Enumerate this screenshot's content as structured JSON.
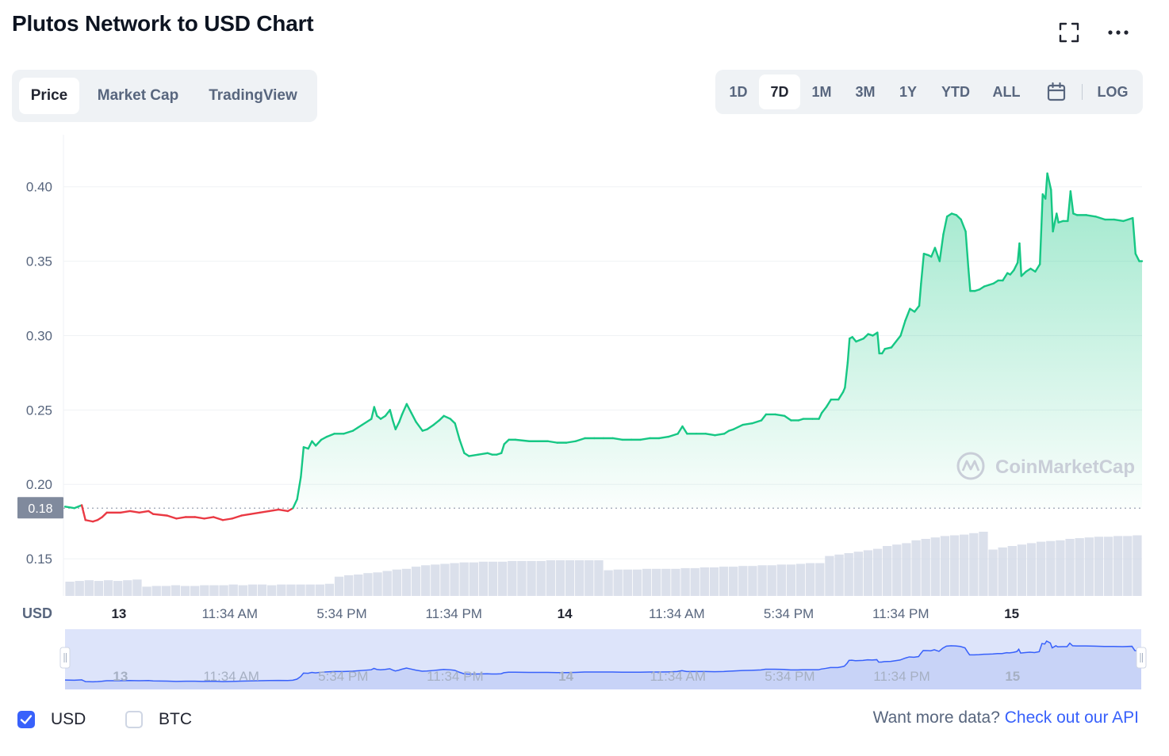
{
  "title": "Plutos Network to USD Chart",
  "icons": {
    "fullscreen": "fullscreen-icon",
    "more": "more-options-icon",
    "calendar": "calendar-icon",
    "check": "check-icon",
    "brand": "coinmarketcap-logo-icon"
  },
  "tabs": [
    {
      "label": "Price",
      "active": true
    },
    {
      "label": "Market Cap",
      "active": false
    },
    {
      "label": "TradingView",
      "active": false
    }
  ],
  "ranges": [
    {
      "label": "1D",
      "active": false
    },
    {
      "label": "7D",
      "active": true
    },
    {
      "label": "1M",
      "active": false
    },
    {
      "label": "3M",
      "active": false
    },
    {
      "label": "1Y",
      "active": false
    },
    {
      "label": "YTD",
      "active": false
    },
    {
      "label": "ALL",
      "active": false
    }
  ],
  "log_label": "LOG",
  "currencies": [
    {
      "label": "USD",
      "checked": true
    },
    {
      "label": "BTC",
      "checked": false
    }
  ],
  "api": {
    "prompt": "Want more data?",
    "link": "Check out our API"
  },
  "colors": {
    "up": "#16c784",
    "down": "#ea3943",
    "accent": "#3861fb",
    "grid": "#eff2f5",
    "axis_text": "#58667e",
    "volume": "#cfd6e4"
  },
  "chart_data": {
    "type": "area",
    "title": "",
    "currency_label": "USD",
    "watermark": "CoinMarketCap",
    "ylim": [
      0.125,
      0.435
    ],
    "yticks": [
      0.15,
      0.2,
      0.25,
      0.3,
      0.35,
      0.4
    ],
    "ytick_labels": [
      "0.15",
      "0.20",
      "0.25",
      "0.30",
      "0.35",
      "0.40"
    ],
    "baseline_value": 0.184,
    "baseline_label": "0.18",
    "xticks": [
      {
        "pos": 0.05,
        "label": "13",
        "bold": true
      },
      {
        "pos": 0.153,
        "label": "11:34 AM",
        "bold": false
      },
      {
        "pos": 0.257,
        "label": "5:34 PM",
        "bold": false
      },
      {
        "pos": 0.361,
        "label": "11:34 PM",
        "bold": false
      },
      {
        "pos": 0.464,
        "label": "14",
        "bold": true
      },
      {
        "pos": 0.568,
        "label": "11:34 AM",
        "bold": false
      },
      {
        "pos": 0.672,
        "label": "5:34 PM",
        "bold": false
      },
      {
        "pos": 0.776,
        "label": "11:34 PM",
        "bold": false
      },
      {
        "pos": 0.879,
        "label": "15",
        "bold": true
      }
    ],
    "series": [
      {
        "points": [
          [
            0.0,
            0.185
          ],
          [
            0.01,
            0.184
          ],
          [
            0.018,
            0.186
          ],
          [
            0.02,
            0.181
          ],
          [
            0.022,
            0.176
          ],
          [
            0.03,
            0.175
          ],
          [
            0.035,
            0.176
          ],
          [
            0.04,
            0.178
          ],
          [
            0.045,
            0.181
          ],
          [
            0.06,
            0.181
          ],
          [
            0.07,
            0.182
          ],
          [
            0.08,
            0.181
          ],
          [
            0.09,
            0.182
          ],
          [
            0.095,
            0.18
          ],
          [
            0.11,
            0.179
          ],
          [
            0.12,
            0.177
          ],
          [
            0.13,
            0.178
          ],
          [
            0.14,
            0.178
          ],
          [
            0.15,
            0.177
          ],
          [
            0.16,
            0.178
          ],
          [
            0.17,
            0.176
          ],
          [
            0.18,
            0.177
          ],
          [
            0.19,
            0.179
          ],
          [
            0.2,
            0.18
          ],
          [
            0.21,
            0.181
          ],
          [
            0.22,
            0.182
          ],
          [
            0.23,
            0.183
          ],
          [
            0.24,
            0.182
          ],
          [
            0.2455,
            0.184
          ],
          [
            0.25,
            0.19
          ],
          [
            0.254,
            0.205
          ],
          [
            0.257,
            0.225
          ],
          [
            0.262,
            0.224
          ],
          [
            0.266,
            0.229
          ],
          [
            0.27,
            0.226
          ],
          [
            0.276,
            0.23
          ],
          [
            0.282,
            0.232
          ],
          [
            0.29,
            0.234
          ],
          [
            0.3,
            0.234
          ],
          [
            0.31,
            0.236
          ],
          [
            0.315,
            0.238
          ],
          [
            0.32,
            0.24
          ],
          [
            0.33,
            0.244
          ],
          [
            0.333,
            0.252
          ],
          [
            0.336,
            0.246
          ],
          [
            0.34,
            0.244
          ],
          [
            0.345,
            0.246
          ],
          [
            0.35,
            0.25
          ],
          [
            0.353,
            0.243
          ],
          [
            0.356,
            0.237
          ],
          [
            0.36,
            0.242
          ],
          [
            0.363,
            0.247
          ],
          [
            0.368,
            0.254
          ],
          [
            0.373,
            0.248
          ],
          [
            0.378,
            0.242
          ],
          [
            0.385,
            0.236
          ],
          [
            0.39,
            0.237
          ],
          [
            0.397,
            0.24
          ],
          [
            0.403,
            0.243
          ],
          [
            0.408,
            0.246
          ],
          [
            0.415,
            0.244
          ],
          [
            0.42,
            0.241
          ],
          [
            0.425,
            0.23
          ],
          [
            0.43,
            0.221
          ],
          [
            0.435,
            0.219
          ],
          [
            0.445,
            0.22
          ],
          [
            0.455,
            0.221
          ],
          [
            0.46,
            0.22
          ],
          [
            0.465,
            0.22
          ],
          [
            0.47,
            0.221
          ],
          [
            0.473,
            0.227
          ],
          [
            0.478,
            0.23
          ],
          [
            0.485,
            0.23
          ],
          [
            0.5,
            0.229
          ],
          [
            0.51,
            0.229
          ],
          [
            0.52,
            0.229
          ],
          [
            0.53,
            0.228
          ],
          [
            0.54,
            0.228
          ],
          [
            0.55,
            0.229
          ],
          [
            0.56,
            0.231
          ],
          [
            0.57,
            0.231
          ],
          [
            0.58,
            0.231
          ],
          [
            0.59,
            0.231
          ],
          [
            0.6,
            0.23
          ],
          [
            0.61,
            0.23
          ],
          [
            0.62,
            0.23
          ],
          [
            0.63,
            0.231
          ],
          [
            0.64,
            0.231
          ],
          [
            0.65,
            0.232
          ],
          [
            0.66,
            0.234
          ],
          [
            0.665,
            0.239
          ],
          [
            0.67,
            0.234
          ],
          [
            0.68,
            0.234
          ],
          [
            0.69,
            0.234
          ],
          [
            0.7,
            0.233
          ],
          [
            0.71,
            0.234
          ],
          [
            0.715,
            0.236
          ],
          [
            0.72,
            0.237
          ],
          [
            0.73,
            0.24
          ],
          [
            0.74,
            0.241
          ],
          [
            0.75,
            0.243
          ],
          [
            0.755,
            0.247
          ],
          [
            0.765,
            0.247
          ],
          [
            0.775,
            0.246
          ],
          [
            0.782,
            0.243
          ],
          [
            0.79,
            0.243
          ],
          [
            0.795,
            0.244
          ],
          [
            0.805,
            0.244
          ],
          [
            0.812,
            0.244
          ],
          [
            0.815,
            0.248
          ],
          [
            0.82,
            0.252
          ],
          [
            0.825,
            0.257
          ],
          [
            0.833,
            0.257
          ],
          [
            0.838,
            0.262
          ],
          [
            0.84,
            0.265
          ],
          [
            0.843,
            0.282
          ],
          [
            0.845,
            0.298
          ],
          [
            0.848,
            0.299
          ],
          [
            0.852,
            0.296
          ],
          [
            0.86,
            0.298
          ],
          [
            0.865,
            0.301
          ],
          [
            0.87,
            0.3
          ],
          [
            0.875,
            0.302
          ],
          [
            0.877,
            0.288
          ],
          [
            0.88,
            0.288
          ],
          [
            0.883,
            0.291
          ],
          [
            0.89,
            0.292
          ],
          [
            0.9,
            0.3
          ],
          [
            0.905,
            0.31
          ],
          [
            0.91,
            0.318
          ],
          [
            0.915,
            0.316
          ],
          [
            0.92,
            0.32
          ],
          [
            0.922,
            0.335
          ],
          [
            0.925,
            0.355
          ],
          [
            0.93,
            0.354
          ],
          [
            0.933,
            0.353
          ],
          [
            0.937,
            0.359
          ],
          [
            0.942,
            0.35
          ],
          [
            0.946,
            0.368
          ],
          [
            0.95,
            0.38
          ],
          [
            0.955,
            0.382
          ],
          [
            0.96,
            0.381
          ],
          [
            0.965,
            0.378
          ],
          [
            0.97,
            0.37
          ],
          [
            0.973,
            0.345
          ],
          [
            0.975,
            0.33
          ],
          [
            0.98,
            0.33
          ],
          [
            0.985,
            0.331
          ],
          [
            0.99,
            0.333
          ],
          [
            0.995,
            0.334
          ],
          [
            1.0,
            0.335
          ],
          [
            1.005,
            0.337
          ],
          [
            1.01,
            0.337
          ],
          [
            1.015,
            0.342
          ],
          [
            1.018,
            0.341
          ],
          [
            1.022,
            0.344
          ],
          [
            1.026,
            0.349
          ],
          [
            1.028,
            0.362
          ],
          [
            1.03,
            0.34
          ],
          [
            1.035,
            0.343
          ],
          [
            1.04,
            0.345
          ],
          [
            1.045,
            0.343
          ],
          [
            1.05,
            0.348
          ],
          [
            1.053,
            0.395
          ],
          [
            1.056,
            0.392
          ],
          [
            1.058,
            0.409
          ],
          [
            1.062,
            0.398
          ],
          [
            1.064,
            0.37
          ],
          [
            1.068,
            0.382
          ],
          [
            1.07,
            0.376
          ],
          [
            1.075,
            0.377
          ],
          [
            1.08,
            0.377
          ],
          [
            1.083,
            0.397
          ],
          [
            1.086,
            0.382
          ],
          [
            1.09,
            0.381
          ],
          [
            1.1,
            0.381
          ],
          [
            1.11,
            0.38
          ],
          [
            1.12,
            0.378
          ],
          [
            1.13,
            0.378
          ],
          [
            1.14,
            0.377
          ],
          [
            1.15,
            0.379
          ],
          [
            1.153,
            0.355
          ],
          [
            1.157,
            0.35
          ],
          [
            1.16,
            0.35
          ]
        ]
      }
    ],
    "volume": [
      0.2,
      0.21,
      0.22,
      0.21,
      0.22,
      0.21,
      0.22,
      0.23,
      0.13,
      0.14,
      0.14,
      0.15,
      0.14,
      0.14,
      0.15,
      0.15,
      0.15,
      0.16,
      0.15,
      0.16,
      0.16,
      0.15,
      0.16,
      0.16,
      0.16,
      0.16,
      0.16,
      0.17,
      0.27,
      0.29,
      0.3,
      0.32,
      0.33,
      0.35,
      0.37,
      0.38,
      0.41,
      0.43,
      0.44,
      0.45,
      0.46,
      0.47,
      0.47,
      0.48,
      0.48,
      0.48,
      0.49,
      0.49,
      0.49,
      0.49,
      0.5,
      0.5,
      0.5,
      0.5,
      0.5,
      0.5,
      0.36,
      0.37,
      0.37,
      0.37,
      0.38,
      0.38,
      0.38,
      0.38,
      0.39,
      0.39,
      0.4,
      0.4,
      0.41,
      0.41,
      0.42,
      0.42,
      0.43,
      0.43,
      0.44,
      0.44,
      0.45,
      0.46,
      0.46,
      0.56,
      0.58,
      0.6,
      0.62,
      0.64,
      0.66,
      0.7,
      0.72,
      0.74,
      0.78,
      0.8,
      0.82,
      0.84,
      0.85,
      0.86,
      0.88,
      0.9,
      0.65,
      0.68,
      0.7,
      0.72,
      0.74,
      0.76,
      0.77,
      0.78,
      0.8,
      0.81,
      0.82,
      0.83,
      0.83,
      0.84,
      0.84,
      0.85
    ],
    "navigator": {
      "ylim": [
        0.14,
        0.45
      ]
    }
  }
}
